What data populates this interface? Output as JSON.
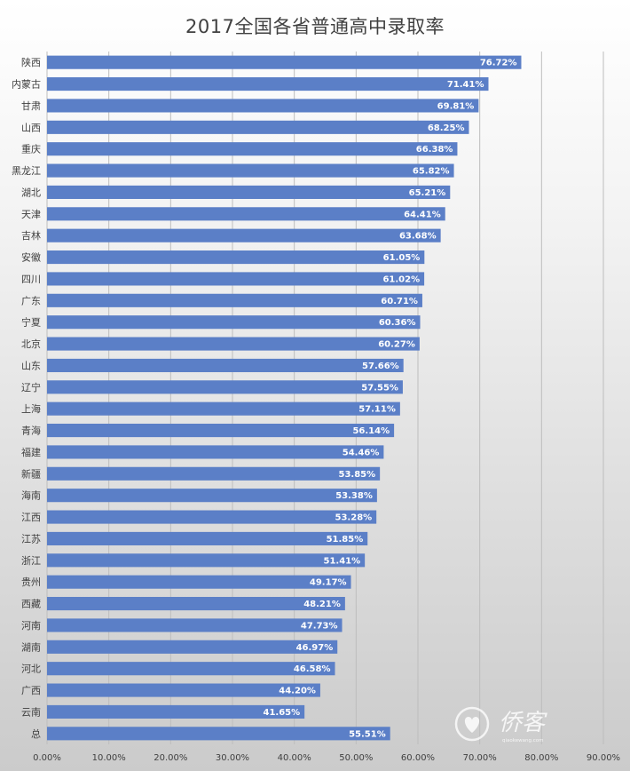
{
  "chart_data": {
    "type": "bar",
    "orientation": "horizontal",
    "title": "2017全国各省普通高中录取率",
    "xlabel": "",
    "ylabel": "",
    "xlim": [
      0,
      90
    ],
    "x_ticks": [
      "0.00%",
      "10.00%",
      "20.00%",
      "30.00%",
      "40.00%",
      "50.00%",
      "60.00%",
      "70.00%",
      "80.00%",
      "90.00%"
    ],
    "grid": "vertical",
    "legend": "none",
    "bar_color": "#5b7fc7",
    "categories": [
      "陕西",
      "内蒙古",
      "甘肃",
      "山西",
      "重庆",
      "黑龙江",
      "湖北",
      "天津",
      "吉林",
      "安徽",
      "四川",
      "广东",
      "宁夏",
      "北京",
      "山东",
      "辽宁",
      "上海",
      "青海",
      "福建",
      "新疆",
      "海南",
      "江西",
      "江苏",
      "浙江",
      "贵州",
      "西藏",
      "河南",
      "湖南",
      "河北",
      "广西",
      "云南",
      "总"
    ],
    "values": [
      76.72,
      71.41,
      69.81,
      68.25,
      66.38,
      65.82,
      65.21,
      64.41,
      63.68,
      61.05,
      61.02,
      60.71,
      60.36,
      60.27,
      57.66,
      57.55,
      57.11,
      56.14,
      54.46,
      53.85,
      53.38,
      53.28,
      51.85,
      51.41,
      49.17,
      48.21,
      47.73,
      46.97,
      46.58,
      44.2,
      41.65,
      55.51
    ],
    "data_labels": [
      "76.72%",
      "71.41%",
      "69.81%",
      "68.25%",
      "66.38%",
      "65.82%",
      "65.21%",
      "64.41%",
      "63.68%",
      "61.05%",
      "61.02%",
      "60.71%",
      "60.36%",
      "60.27%",
      "57.66%",
      "57.55%",
      "57.11%",
      "56.14%",
      "54.46%",
      "53.85%",
      "53.38%",
      "53.28%",
      "51.85%",
      "51.41%",
      "49.17%",
      "48.21%",
      "47.73%",
      "46.97%",
      "46.58%",
      "44.20%",
      "41.65%",
      "55.51%"
    ]
  },
  "watermark": {
    "icon": "heart-logo-icon",
    "text": "侨客",
    "subtext": "qiaokewang.com"
  }
}
